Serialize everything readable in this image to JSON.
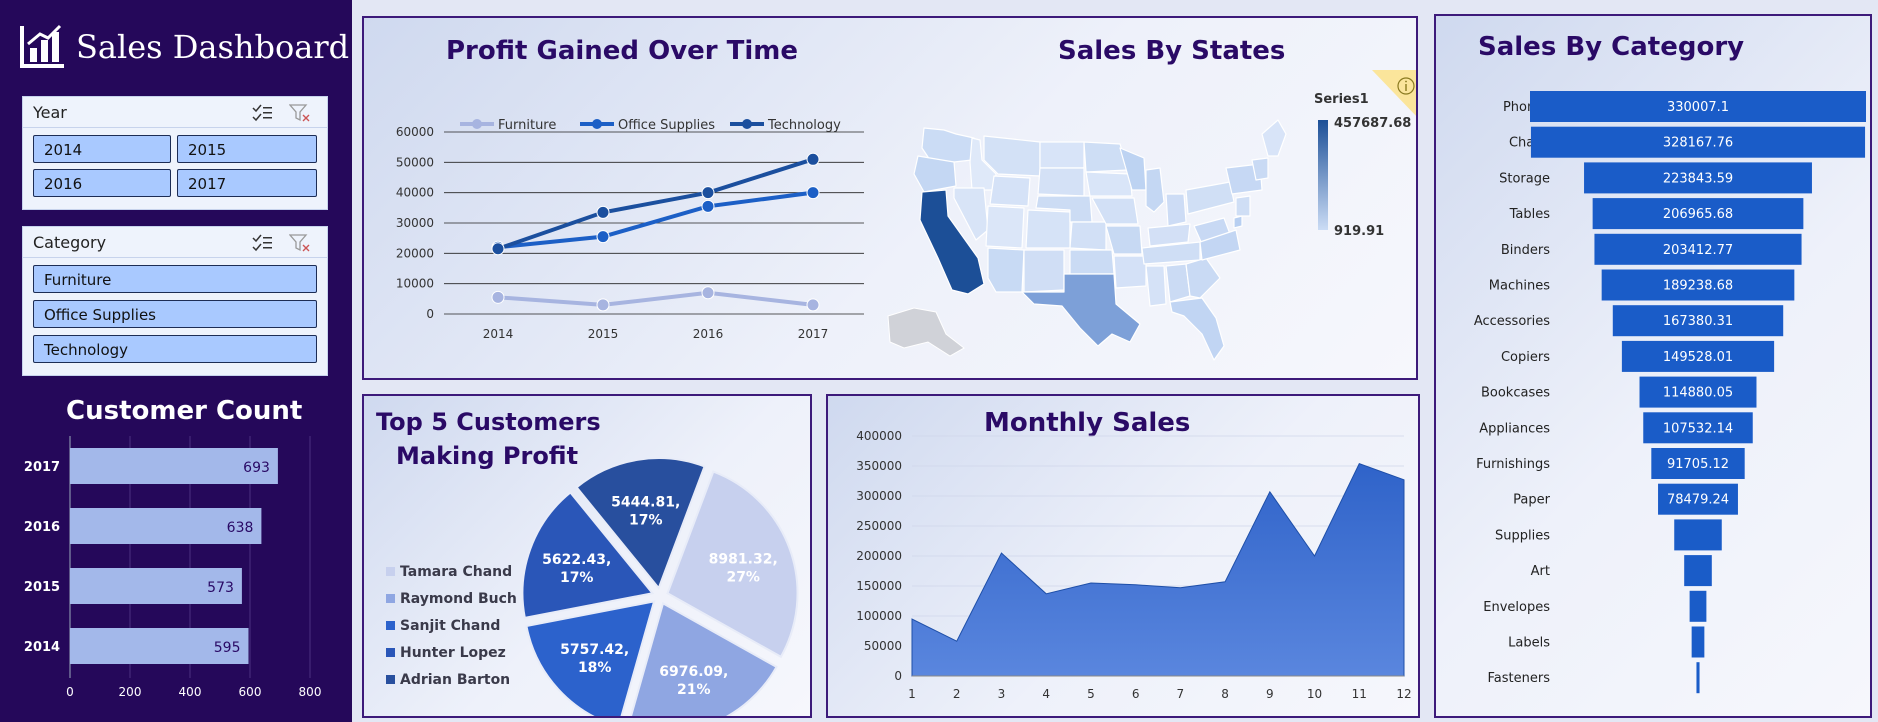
{
  "dashboard": {
    "title": "Sales Dashboard"
  },
  "colors": {
    "sidebar": "#25085a",
    "accent": "#1a5cc8",
    "title": "#2a0a66"
  },
  "slicers": {
    "year": {
      "title": "Year",
      "options": [
        "2014",
        "2015",
        "2016",
        "2017"
      ]
    },
    "category": {
      "title": "Category",
      "options": [
        "Furniture",
        "Office Supplies",
        "Technology"
      ]
    }
  },
  "customer_count": {
    "title": "Customer Count",
    "chart_data": {
      "type": "bar",
      "categories": [
        "2017",
        "2016",
        "2015",
        "2014"
      ],
      "values": [
        693,
        638,
        573,
        595
      ],
      "xlim": [
        0,
        800
      ],
      "xticks": [
        "0",
        "200",
        "400",
        "600",
        "800"
      ]
    }
  },
  "profit_over_time": {
    "title": "Profit Gained Over Time",
    "chart_data": {
      "type": "line",
      "x": [
        "2014",
        "2015",
        "2016",
        "2017"
      ],
      "series": [
        {
          "name": "Furniture",
          "values": [
            5500,
            3000,
            7000,
            3000
          ]
        },
        {
          "name": "Office Supplies",
          "values": [
            22000,
            25500,
            35500,
            40000
          ]
        },
        {
          "name": "Technology",
          "values": [
            21500,
            33500,
            40000,
            51000
          ]
        }
      ],
      "ylim": [
        0,
        60000
      ],
      "yticks": [
        "0",
        "10000",
        "20000",
        "30000",
        "40000",
        "50000",
        "60000"
      ]
    }
  },
  "sales_by_states": {
    "title": "Sales By States",
    "legend": {
      "title": "Series1",
      "max": "457687.68",
      "min": "919.91"
    },
    "info_icon": "info-icon"
  },
  "sales_by_category": {
    "title": "Sales By Category",
    "chart_data": {
      "type": "bar",
      "categories": [
        "Phones",
        "Chairs",
        "Storage",
        "Tables",
        "Binders",
        "Machines",
        "Accessories",
        "Copiers",
        "Bookcases",
        "Appliances",
        "Furnishings",
        "Paper",
        "Supplies",
        "Art",
        "Envelopes",
        "Labels",
        "Fasteners"
      ],
      "values": [
        330007.1,
        328167.76,
        223843.59,
        206965.68,
        203412.77,
        189238.68,
        167380.31,
        149528.01,
        114880.05,
        107532.14,
        91705.12,
        78479.24,
        46674,
        27119,
        16476,
        12486,
        3024
      ],
      "labels": [
        "330007.1",
        "328167.76",
        "223843.59",
        "206965.68",
        "203412.77",
        "189238.68",
        "167380.31",
        "149528.01",
        "114880.05",
        "107532.14",
        "91705.12",
        "78479.24",
        "",
        "",
        "",
        "",
        ""
      ]
    }
  },
  "top_customers": {
    "title_line1": "Top 5 Customers",
    "title_line2": "Making Profit",
    "chart_data": {
      "type": "pie",
      "categories": [
        "Tamara Chand",
        "Raymond Buch",
        "Sanjit Chand",
        "Hunter Lopez",
        "Adrian Barton"
      ],
      "values": [
        8981.32,
        6976.09,
        5757.42,
        5622.43,
        5444.81
      ],
      "labels": [
        "8981.32, 27%",
        "6976.09, 21%",
        "5757.42, 18%",
        "5622.43, 17%",
        "5444.81, 17%"
      ],
      "colors": [
        "#c7d0ee",
        "#8fa6e2",
        "#2c62cc",
        "#2a56b8",
        "#284f9e"
      ]
    }
  },
  "monthly_sales": {
    "title": "Monthly Sales",
    "chart_data": {
      "type": "area",
      "x": [
        "1",
        "2",
        "3",
        "4",
        "5",
        "6",
        "7",
        "8",
        "9",
        "10",
        "11",
        "12"
      ],
      "values": [
        95000,
        58000,
        205000,
        137000,
        155000,
        152000,
        147000,
        157000,
        307000,
        200000,
        354000,
        327000
      ],
      "ylim": [
        0,
        400000
      ],
      "yticks": [
        "0",
        "50000",
        "100000",
        "150000",
        "200000",
        "250000",
        "300000",
        "350000",
        "400000"
      ]
    }
  }
}
